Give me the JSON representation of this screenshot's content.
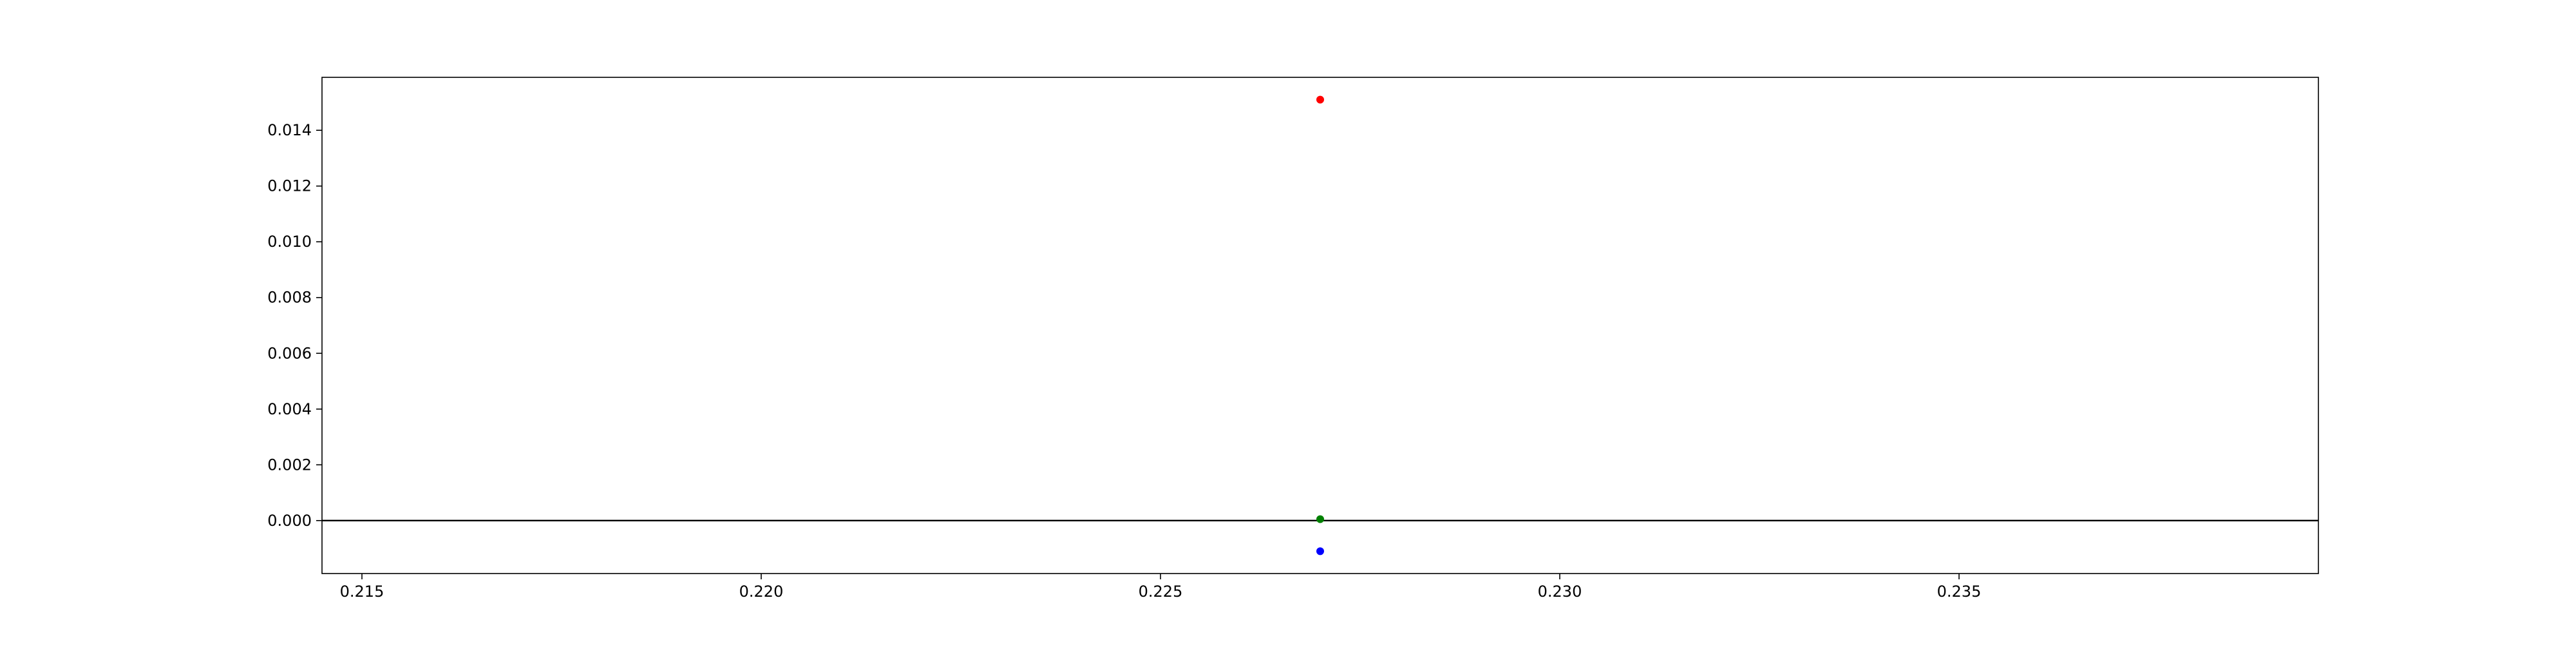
{
  "chart_data": {
    "type": "scatter",
    "title": "",
    "xlabel": "",
    "ylabel": "",
    "xlim": [
      0.2145,
      0.2395
    ],
    "ylim": [
      -0.0019,
      0.0159
    ],
    "xticks": [
      0.215,
      0.22,
      0.225,
      0.23,
      0.235
    ],
    "xtick_labels": [
      "0.215",
      "0.220",
      "0.225",
      "0.230",
      "0.235"
    ],
    "yticks": [
      0.0,
      0.002,
      0.004,
      0.006,
      0.008,
      0.01,
      0.012,
      0.014
    ],
    "ytick_labels": [
      "0.000",
      "0.002",
      "0.004",
      "0.006",
      "0.008",
      "0.010",
      "0.012",
      "0.014"
    ],
    "grid": false,
    "reference_line": {
      "y": 0.0,
      "color": "#000000"
    },
    "points": [
      {
        "x": 0.227,
        "y": 0.0151,
        "color": "#ff0000"
      },
      {
        "x": 0.227,
        "y": 5e-05,
        "color": "#008000"
      },
      {
        "x": 0.227,
        "y": -0.0011,
        "color": "#0000ff"
      }
    ]
  }
}
